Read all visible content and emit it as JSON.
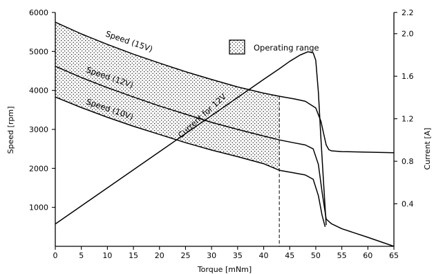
{
  "chart_data": {
    "type": "line",
    "title": "",
    "xlabel": "Torque [mNm]",
    "ylabel": "Speed [rpm]",
    "y2label": "Current [A]",
    "xlim": [
      0,
      65
    ],
    "ylim": [
      0,
      6000
    ],
    "y2lim": [
      0,
      2.2
    ],
    "xticks": [
      0,
      5,
      10,
      15,
      20,
      25,
      30,
      35,
      40,
      45,
      50,
      55,
      60,
      65
    ],
    "yticks": [
      1000,
      2000,
      3000,
      4000,
      5000,
      6000
    ],
    "y2ticks": [
      "0.4",
      "0.8",
      "1.2",
      "1.6",
      "2.0",
      "2.2"
    ],
    "grid": false,
    "legend": {
      "label": "Operating range",
      "position": "top-center"
    },
    "operating_range": {
      "x_max": 43
    },
    "series": [
      {
        "name": "Speed (15V)",
        "axis": "left",
        "x": [
          0,
          5,
          10,
          15,
          20,
          25,
          30,
          35,
          40,
          43,
          46,
          48,
          50,
          51,
          51.5,
          52,
          52.5,
          53,
          55,
          65
        ],
        "y": [
          5750,
          5450,
          5180,
          4930,
          4700,
          4480,
          4280,
          4090,
          3930,
          3850,
          3780,
          3720,
          3550,
          3200,
          2900,
          2600,
          2480,
          2450,
          2430,
          2400
        ]
      },
      {
        "name": "Speed (12V)",
        "axis": "left",
        "x": [
          0,
          5,
          10,
          15,
          20,
          25,
          30,
          35,
          40,
          43,
          46,
          48,
          49.5,
          50.5,
          51.2,
          52,
          53,
          55,
          60,
          65
        ],
        "y": [
          4620,
          4330,
          4070,
          3830,
          3600,
          3390,
          3180,
          3000,
          2830,
          2730,
          2650,
          2600,
          2500,
          2100,
          1400,
          700,
          580,
          450,
          230,
          0
        ]
      },
      {
        "name": "Speed (10V)",
        "axis": "left",
        "x": [
          0,
          5,
          10,
          15,
          20,
          25,
          30,
          35,
          40,
          43,
          46,
          48,
          49.5,
          50.5,
          51.2,
          51.8
        ],
        "y": [
          3830,
          3560,
          3310,
          3080,
          2870,
          2660,
          2470,
          2300,
          2120,
          1950,
          1880,
          1830,
          1720,
          1300,
          800,
          500
        ]
      },
      {
        "name": "Current for 12V",
        "axis": "right",
        "x": [
          0,
          5,
          10,
          15,
          20,
          25,
          30,
          35,
          40,
          43,
          45,
          47,
          48.5,
          49.5,
          50,
          50.5,
          51,
          51.5,
          52
        ],
        "y": [
          0.21,
          0.38,
          0.55,
          0.72,
          0.89,
          1.06,
          1.23,
          1.4,
          1.57,
          1.67,
          1.74,
          1.8,
          1.83,
          1.82,
          1.75,
          1.45,
          1.0,
          0.6,
          0.2
        ]
      }
    ],
    "curve_labels": [
      "Speed (15V)",
      "Speed (12V)",
      "Speed (10V)",
      "Current for 12V"
    ]
  }
}
